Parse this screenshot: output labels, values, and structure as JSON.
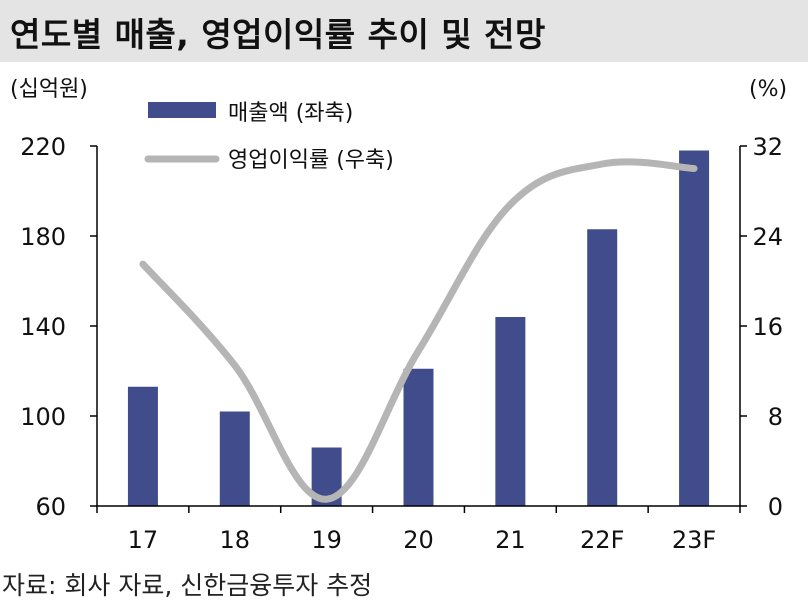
{
  "title": "연도별 매출, 영업이익률 추이 및 전망",
  "source": "자료: 회사 자료, 신한금융투자 추정",
  "colors": {
    "bar": "#404c8c",
    "line": "#b5b5b5",
    "axis": "#000000",
    "title_bg": "#e4e4e4"
  },
  "chart_data": {
    "type": "bar",
    "categories": [
      "17",
      "18",
      "19",
      "20",
      "21",
      "22F",
      "23F"
    ],
    "series": [
      {
        "name": "매출액 (좌축)",
        "type": "bar",
        "axis": "left",
        "values": [
          113,
          102,
          86,
          121,
          144,
          183,
          218
        ]
      },
      {
        "name": "영업이익률 (우축)",
        "type": "line",
        "axis": "right",
        "values": [
          21.5,
          12.5,
          0.6,
          13.8,
          26.8,
          30.4,
          30.0
        ]
      }
    ],
    "left_axis": {
      "unit_label": "(십억원)",
      "ticks": [
        60,
        100,
        140,
        180,
        220
      ],
      "range": [
        60,
        220
      ]
    },
    "right_axis": {
      "unit_label": "(%)",
      "ticks": [
        0,
        8,
        16,
        24,
        32
      ],
      "range": [
        0,
        32
      ]
    },
    "legend_position": "top-left",
    "grid": false
  }
}
